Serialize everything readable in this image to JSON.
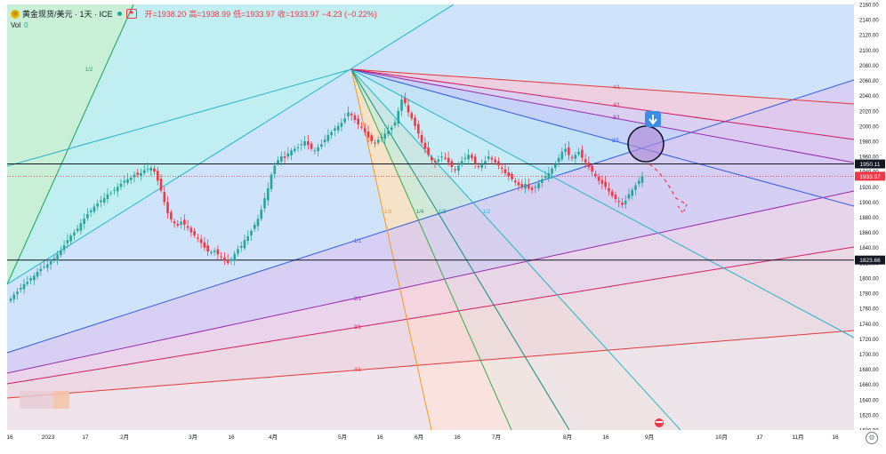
{
  "legend": {
    "symbol": "黄金现货/美元 · 1天 · ICE",
    "open": "开=1938.20",
    "high": "高=1938.99",
    "low": "低=1933.97",
    "close": "收=1933.97",
    "change": "−4.23 (−0.22%)"
  },
  "volume": {
    "label": "Vol",
    "value": "0"
  },
  "colors": {
    "up": "#26a69a",
    "down": "#f23645",
    "last_price": "#f23645"
  },
  "chart_data": {
    "type": "candlestick",
    "symbol": "XAUUSD",
    "timeframe": "1D",
    "ylim": [
      1600,
      2160
    ],
    "y_ticks": [
      1600,
      1620,
      1640,
      1660,
      1680,
      1700,
      1720,
      1740,
      1760,
      1780,
      1800,
      1820,
      1840,
      1860,
      1880,
      1900,
      1920,
      1940,
      1960,
      1980,
      2000,
      2020,
      2040,
      2060,
      2080,
      2100,
      2120,
      2140,
      2160
    ],
    "x_ticks": [
      "16",
      "2023",
      "17",
      "2月",
      "3月",
      "16",
      "4月",
      "5月",
      "16",
      "6月",
      "16",
      "7月",
      "8月",
      "16",
      "9月",
      "10月",
      "17",
      "11月",
      "16"
    ],
    "price_labels": [
      {
        "value": "1950.11"
      },
      {
        "value": "1933.97",
        "kind": "last"
      },
      {
        "value": "1823.66"
      }
    ],
    "horizontal_lines": [
      1950.11,
      1823.66
    ],
    "closes": [
      1773,
      1778,
      1782,
      1787,
      1792,
      1795,
      1800,
      1803,
      1808,
      1812,
      1815,
      1818,
      1822,
      1826,
      1831,
      1836,
      1843,
      1850,
      1856,
      1860,
      1865,
      1872,
      1878,
      1884,
      1889,
      1894,
      1898,
      1902,
      1905,
      1910,
      1912,
      1916,
      1920,
      1924,
      1928,
      1930,
      1932,
      1936,
      1936,
      1938,
      1942,
      1944,
      1945,
      1940,
      1928,
      1915,
      1900,
      1885,
      1877,
      1872,
      1869,
      1874,
      1870,
      1866,
      1860,
      1856,
      1852,
      1846,
      1840,
      1835,
      1834,
      1836,
      1831,
      1828,
      1823,
      1820,
      1825,
      1832,
      1838,
      1842,
      1850,
      1855,
      1862,
      1870,
      1878,
      1890,
      1905,
      1918,
      1936,
      1948,
      1955,
      1960,
      1958,
      1964,
      1968,
      1970,
      1972,
      1976,
      1980,
      1975,
      1970,
      1968,
      1972,
      1976,
      1982,
      1988,
      1992,
      1997,
      2000,
      2004,
      2010,
      2018,
      2014,
      2008,
      2002,
      1998,
      1992,
      1985,
      1980,
      1978,
      1982,
      1986,
      1990,
      1994,
      1998,
      2005,
      2020,
      2035,
      2030,
      2018,
      2010,
      2000,
      1990,
      1978,
      1970,
      1962,
      1955,
      1952,
      1956,
      1960,
      1958,
      1952,
      1946,
      1942,
      1948,
      1954,
      1958,
      1962,
      1958,
      1950,
      1946,
      1950,
      1954,
      1960,
      1956,
      1952,
      1948,
      1944,
      1938,
      1934,
      1930,
      1926,
      1922,
      1920,
      1924,
      1918,
      1916,
      1920,
      1925,
      1930,
      1934,
      1938,
      1944,
      1950,
      1958,
      1966,
      1970,
      1962,
      1958,
      1962,
      1966,
      1958,
      1952,
      1946,
      1940,
      1934,
      1928,
      1924,
      1920,
      1914,
      1908,
      1904,
      1900,
      1896,
      1902,
      1910,
      1916,
      1922,
      1928,
      1933.97
    ],
    "projection": [
      1950,
      1940,
      1925,
      1905,
      1898
    ],
    "gann_fans": [
      {
        "origin": "pivot-low",
        "labels": [
          "1/2"
        ]
      },
      {
        "origin": "pivot-high",
        "labels": [
          "4/1",
          "4/1",
          "3/1",
          "2/1",
          "1/8",
          "1/4",
          "1/3",
          "1/2",
          "1/1",
          "2/1",
          "3/1",
          "4/1",
          "8/1"
        ]
      }
    ],
    "annotations": [
      {
        "type": "arrow-down"
      },
      {
        "type": "circle"
      }
    ]
  }
}
